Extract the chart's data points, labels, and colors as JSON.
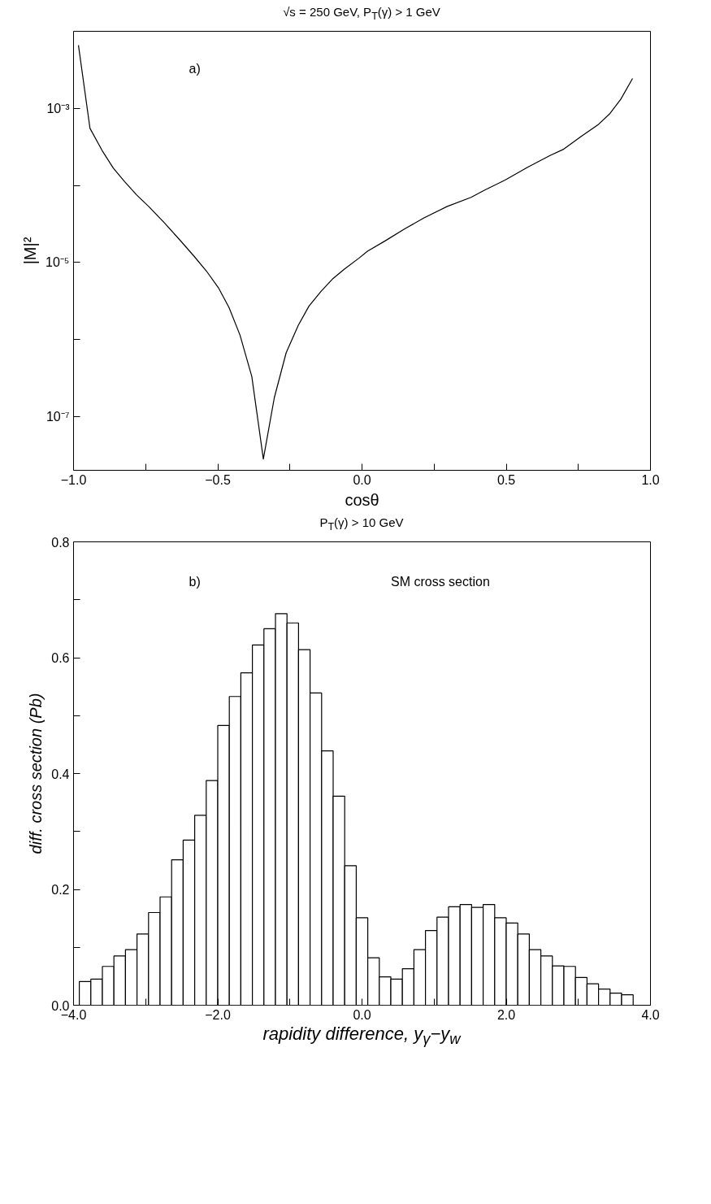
{
  "chart_data": [
    {
      "type": "line",
      "title": "√s = 250 GeV, P$_{T}$(γ) > 1 GeV",
      "xlabel": "cosθ",
      "ylabel": "|M|²",
      "annotations": [
        "a)"
      ],
      "x": [
        -0.983,
        -0.943,
        -0.901,
        -0.862,
        -0.823,
        -0.781,
        -0.739,
        -0.683,
        -0.627,
        -0.582,
        -0.539,
        -0.498,
        -0.461,
        -0.423,
        -0.382,
        -0.342,
        -0.304,
        -0.263,
        -0.221,
        -0.184,
        -0.142,
        -0.1,
        -0.061,
        -0.01,
        0.019,
        0.081,
        0.148,
        0.215,
        0.294,
        0.378,
        0.423,
        0.496,
        0.574,
        0.652,
        0.697,
        0.759,
        0.818,
        0.86,
        0.897,
        0.938
      ],
      "series": [
        {
          "color": "#000000",
          "values": [
            0.0066,
            0.00055,
            0.000284,
            0.000167,
            0.000112,
            7.5e-05,
            5.3e-05,
            3.2e-05,
            1.87e-05,
            1.2e-05,
            7.7e-06,
            4.7e-06,
            2.6e-06,
            1.14e-06,
            3.3e-07,
            2.8e-08,
            1.75e-07,
            6.7e-07,
            1.52e-06,
            2.7e-06,
            4.2e-06,
            6.2e-06,
            8.2e-06,
            1.14e-05,
            1.4e-05,
            1.91e-05,
            2.72e-05,
            3.78e-05,
            5.3e-05,
            7e-05,
            8.6e-05,
            0.000117,
            0.000172,
            0.000244,
            0.000292,
            0.00043,
            0.00061,
            0.00086,
            0.00131,
            0.00244
          ]
        }
      ],
      "log": "y",
      "xlim": [
        -1.0,
        1.0
      ],
      "ylim": [
        2e-08,
        0.01
      ],
      "xticks": [
        {
          "value": -1.0,
          "label": "−1.0"
        },
        {
          "value": -0.75,
          "label": null
        },
        {
          "value": -0.5,
          "label": "−0.5"
        },
        {
          "value": -0.25,
          "label": null
        },
        {
          "value": 0.0,
          "label": "0.0"
        },
        {
          "value": 0.25,
          "label": null
        },
        {
          "value": 0.5,
          "label": "0.5"
        },
        {
          "value": 0.75,
          "label": null
        },
        {
          "value": 1.0,
          "label": "1.0"
        }
      ],
      "yticks": [
        {
          "value": 0.001,
          "label": "10⁻³"
        },
        {
          "value": 0.0001,
          "label": null
        },
        {
          "value": 1e-05,
          "label": "10⁻⁵"
        },
        {
          "value": 1e-06,
          "label": null
        },
        {
          "value": 1e-07,
          "label": "10⁻⁷"
        }
      ]
    },
    {
      "type": "histogram",
      "title": "P$_{T}$(γ) > 10 GeV",
      "xlabel": "rapidity difference, y$_{γ}$−y$_{w}$",
      "ylabel": "diff. cross section (Pb)",
      "annotations": [
        "b)",
        "SM cross section"
      ],
      "bins": [
        -3.92,
        -3.76,
        -3.6,
        -3.44,
        -3.28,
        -3.12,
        -2.96,
        -2.8,
        -2.64,
        -2.48,
        -2.32,
        -2.16,
        -2.0,
        -1.84,
        -1.68,
        -1.52,
        -1.36,
        -1.2,
        -1.04,
        -0.88,
        -0.72,
        -0.56,
        -0.4,
        -0.24,
        -0.08,
        0.08,
        0.24,
        0.4,
        0.56,
        0.72,
        0.88,
        1.04,
        1.2,
        1.36,
        1.52,
        1.68,
        1.84,
        2.0,
        2.16,
        2.32,
        2.48,
        2.64,
        2.8,
        2.96,
        3.12,
        3.28,
        3.44,
        3.6,
        3.76
      ],
      "values": [
        0.041,
        0.045,
        0.067,
        0.085,
        0.096,
        0.123,
        0.16,
        0.187,
        0.251,
        0.285,
        0.328,
        0.388,
        0.483,
        0.533,
        0.574,
        0.622,
        0.65,
        0.676,
        0.66,
        0.614,
        0.539,
        0.439,
        0.361,
        0.241,
        0.151,
        0.082,
        0.049,
        0.045,
        0.063,
        0.096,
        0.129,
        0.152,
        0.17,
        0.174,
        0.169,
        0.174,
        0.151,
        0.142,
        0.123,
        0.096,
        0.085,
        0.068,
        0.067,
        0.048,
        0.037,
        0.028,
        0.021,
        0.018
      ],
      "color": "#ffffff",
      "xlim": [
        -4.0,
        4.0
      ],
      "ylim": [
        0.0,
        0.8
      ],
      "xticks": [
        {
          "value": -4.0,
          "label": "−4.0"
        },
        {
          "value": -3.0,
          "label": null
        },
        {
          "value": -2.0,
          "label": "−2.0"
        },
        {
          "value": -1.0,
          "label": null
        },
        {
          "value": 0.0,
          "label": "0.0"
        },
        {
          "value": 1.0,
          "label": null
        },
        {
          "value": 2.0,
          "label": "2.0"
        },
        {
          "value": 3.0,
          "label": null
        },
        {
          "value": 4.0,
          "label": "4.0"
        }
      ],
      "yticks": [
        {
          "value": 0.0,
          "label": "0.0"
        },
        {
          "value": 0.1,
          "label": null
        },
        {
          "value": 0.2,
          "label": "0.2"
        },
        {
          "value": 0.3,
          "label": null
        },
        {
          "value": 0.4,
          "label": "0.4"
        },
        {
          "value": 0.5,
          "label": null
        },
        {
          "value": 0.6,
          "label": "0.6"
        },
        {
          "value": 0.7,
          "label": null
        },
        {
          "value": 0.8,
          "label": "0.8"
        }
      ]
    }
  ]
}
